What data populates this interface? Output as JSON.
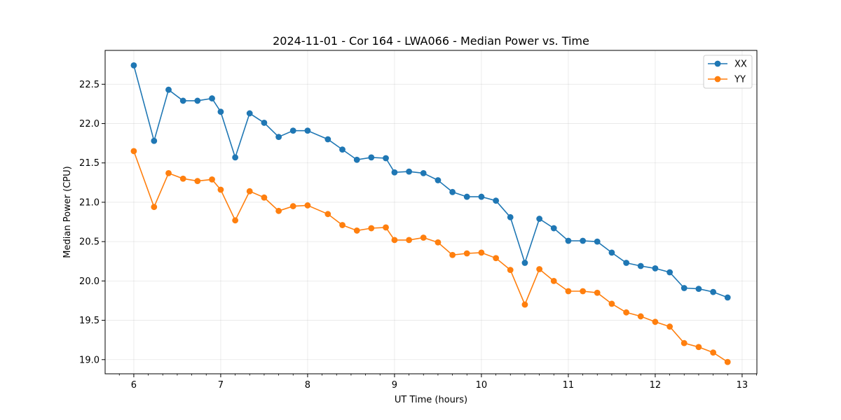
{
  "chart_data": {
    "type": "line",
    "title": "2024-11-01 - Cor 164 - LWA066 - Median Power vs. Time",
    "xlabel": "UT Time (hours)",
    "ylabel": "Median Power (CPU)",
    "xlim": [
      5.67,
      13.17
    ],
    "ylim": [
      18.82,
      22.93
    ],
    "xticks": [
      6,
      7,
      8,
      9,
      10,
      11,
      12,
      13
    ],
    "yticks": [
      19.0,
      19.5,
      20.0,
      20.5,
      21.0,
      21.5,
      22.0,
      22.5
    ],
    "ytick_labels": [
      "19.0",
      "19.5",
      "20.0",
      "20.5",
      "21.0",
      "21.5",
      "22.0",
      "22.5"
    ],
    "grid": true,
    "legend_position": "top-right",
    "x": [
      6.0,
      6.233,
      6.4,
      6.567,
      6.733,
      6.9,
      7.0,
      7.167,
      7.333,
      7.5,
      7.667,
      7.833,
      8.0,
      8.233,
      8.4,
      8.567,
      8.733,
      8.9,
      9.0,
      9.167,
      9.333,
      9.5,
      9.667,
      9.833,
      10.0,
      10.167,
      10.333,
      10.5,
      10.667,
      10.833,
      11.0,
      11.167,
      11.333,
      11.5,
      11.667,
      11.833,
      12.0,
      12.167,
      12.333,
      12.5,
      12.667,
      12.833
    ],
    "series": [
      {
        "name": "XX",
        "color": "#1f77b4",
        "values": [
          22.74,
          21.78,
          22.43,
          22.29,
          22.29,
          22.32,
          22.15,
          21.57,
          22.13,
          22.01,
          21.83,
          21.91,
          21.91,
          21.8,
          21.67,
          21.54,
          21.57,
          21.56,
          21.38,
          21.39,
          21.37,
          21.28,
          21.13,
          21.07,
          21.07,
          21.02,
          20.81,
          20.23,
          20.79,
          20.67,
          20.51,
          20.51,
          20.5,
          20.36,
          20.23,
          20.19,
          20.16,
          20.11,
          19.91,
          19.9,
          19.86,
          19.79
        ]
      },
      {
        "name": "YY",
        "color": "#ff7f0e",
        "values": [
          21.65,
          20.94,
          21.37,
          21.3,
          21.27,
          21.29,
          21.16,
          20.77,
          21.14,
          21.06,
          20.89,
          20.95,
          20.96,
          20.85,
          20.71,
          20.64,
          20.67,
          20.68,
          20.52,
          20.52,
          20.55,
          20.49,
          20.33,
          20.35,
          20.36,
          20.29,
          20.14,
          19.7,
          20.15,
          20.0,
          19.87,
          19.87,
          19.85,
          19.71,
          19.6,
          19.55,
          19.48,
          19.42,
          19.21,
          19.16,
          19.09,
          18.97
        ]
      }
    ]
  }
}
